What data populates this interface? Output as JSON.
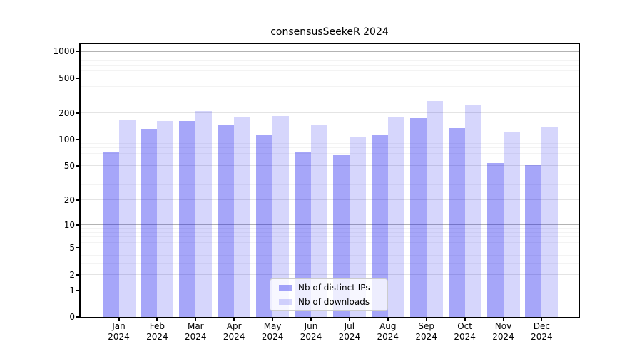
{
  "title": "consensusSeekeR 2024",
  "chart_data": {
    "type": "bar",
    "title": "consensusSeekeR 2024",
    "categories": [
      "Jan 2024",
      "Feb 2024",
      "Mar 2024",
      "Apr 2024",
      "May 2024",
      "Jun 2024",
      "Jul 2024",
      "Aug 2024",
      "Sep 2024",
      "Oct 2024",
      "Nov 2024",
      "Dec 2024"
    ],
    "series": [
      {
        "name": "Nb of distinct IPs",
        "color": "rgba(0,0,238,0.35)",
        "values": [
          73,
          133,
          163,
          148,
          111,
          71,
          67,
          113,
          174,
          136,
          54,
          51
        ]
      },
      {
        "name": "Nb of downloads",
        "color": "rgba(0,0,238,0.16)",
        "values": [
          168,
          163,
          211,
          183,
          187,
          146,
          105,
          182,
          275,
          250,
          121,
          141
        ]
      }
    ],
    "xlabel": "",
    "ylabel": "",
    "yscale": "log1p",
    "yticks": [
      0,
      1,
      2,
      5,
      10,
      20,
      50,
      100,
      200,
      500,
      1000
    ],
    "ylim": [
      0,
      1200
    ],
    "grid": true,
    "legend_position": "lower center"
  }
}
